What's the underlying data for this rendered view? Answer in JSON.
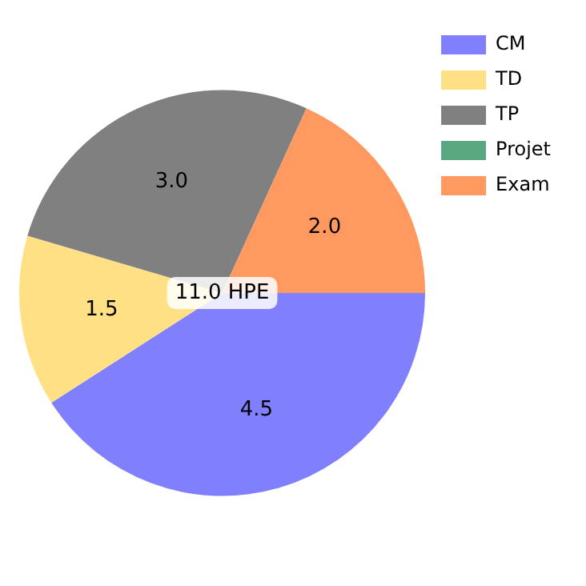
{
  "chart_data": {
    "type": "pie",
    "categories": [
      "CM",
      "TD",
      "TP",
      "Projet",
      "Exam"
    ],
    "values": [
      4.5,
      1.5,
      3.0,
      0,
      2.0
    ],
    "value_labels": [
      "4.5",
      "1.5",
      "3.0",
      null,
      "2.0"
    ],
    "colors": [
      "#8080ff",
      "#ffe084",
      "#808080",
      "#5aa880",
      "#ff9960"
    ],
    "annotations": [
      "11.0 HPE"
    ],
    "legend": "top right"
  }
}
